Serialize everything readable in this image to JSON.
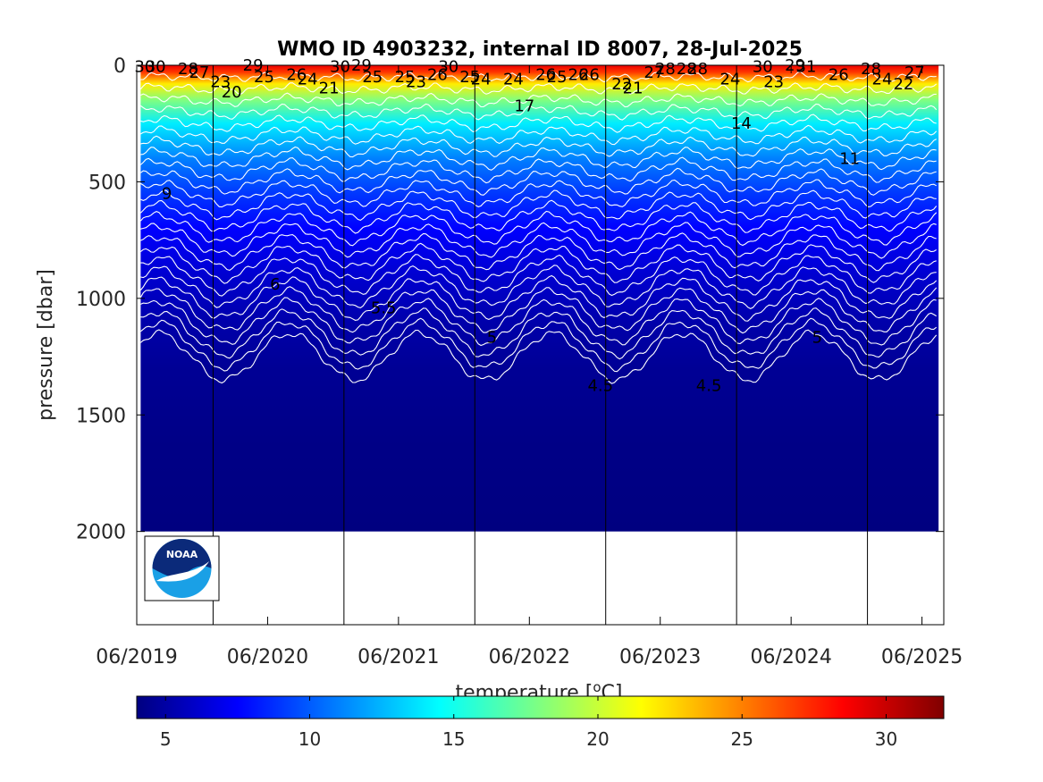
{
  "chart_data": {
    "type": "heatmap",
    "title": "WMO ID 4903232, internal ID 8007, 28-Jul-2025",
    "xlabel": "",
    "ylabel": "pressure [dbar]",
    "colorbar_label": "temperature [oC]",
    "colorbar_label_base": "temperature [",
    "colorbar_label_sup": "o",
    "colorbar_label_tail": "C]",
    "x_range": [
      "2019-06",
      "2025-08"
    ],
    "y_range": [
      0,
      2400
    ],
    "y_reversed": true,
    "colormap": "jet",
    "color_range": [
      4,
      32
    ],
    "x_ticks": [
      "06/2019",
      "06/2020",
      "06/2021",
      "06/2022",
      "06/2023",
      "06/2024",
      "06/2025"
    ],
    "y_ticks": [
      "0",
      "500",
      "1000",
      "1500",
      "2000"
    ],
    "colorbar_ticks": [
      "5",
      "10",
      "15",
      "20",
      "25",
      "30"
    ],
    "year_boundaries": [
      "2020-01",
      "2021-01",
      "2022-01",
      "2023-01",
      "2024-01",
      "2025-01"
    ],
    "profile_max_pressure_dbar": 2000,
    "contour_interval_degC": 1,
    "deep_contours": [
      {
        "label": "4.5",
        "level": 4.5
      },
      {
        "label": "5",
        "level": 5.0
      },
      {
        "label": "5.5",
        "level": 5.5
      },
      {
        "label": "6",
        "level": 6.0
      }
    ],
    "contour_labels": [
      "30",
      "29",
      "29",
      "25",
      "26",
      "28",
      "29",
      "22",
      "23",
      "21",
      "26",
      "26",
      "27",
      "30",
      "28",
      "28",
      "26",
      "25",
      "24",
      "22",
      "24",
      "26",
      "30",
      "25",
      "25",
      "24",
      "26",
      "28",
      "31",
      "27",
      "20",
      "30",
      "30",
      "25",
      "28",
      "23",
      "24",
      "27",
      "24",
      "23",
      "17",
      "21",
      "14",
      "11",
      "9",
      "6",
      "5.5",
      "5",
      "4.5",
      "4.5",
      "5"
    ],
    "grid": false,
    "legend": "colorbar-bottom"
  },
  "logo": {
    "text": "NOAA"
  },
  "colors": {
    "deep": "#00008f",
    "contour_line": "#ffffff",
    "axis": "#000000"
  }
}
